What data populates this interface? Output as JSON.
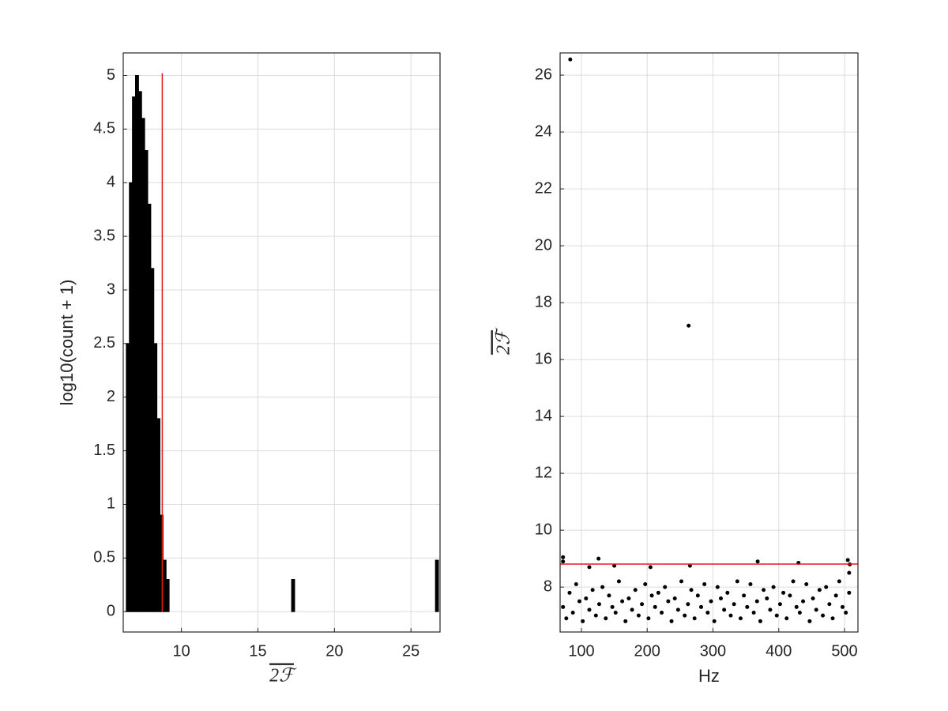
{
  "chart_data": [
    {
      "type": "histogram",
      "xlabel": "2ℱ",
      "ylabel": "log10(count + 1)",
      "bins": [
        6.4,
        6.6,
        6.8,
        7,
        7.2,
        7.4,
        7.6,
        7.8,
        8,
        8.2,
        8.4,
        8.6,
        8.8,
        9,
        9.2,
        9.4,
        9.6,
        9.8,
        10,
        10.2,
        10.4,
        10.6,
        10.8,
        11,
        11.2,
        11.4,
        11.6,
        11.8,
        12,
        12.2,
        12.4,
        12.6,
        12.8,
        13,
        13.2,
        13.4,
        13.6,
        13.8,
        14,
        14.2,
        14.4,
        14.6,
        14.8,
        15,
        15.2,
        15.4,
        15.6,
        15.8,
        16,
        16.2,
        16.4,
        16.6,
        16.8,
        17,
        17.2,
        17.4,
        17.6,
        17.8,
        18,
        18.2,
        18.4,
        18.6,
        18.8,
        19,
        19.2,
        19.4,
        19.6,
        19.8,
        20,
        20.2,
        20.4,
        20.6,
        20.8,
        21,
        21.2,
        21.4,
        21.6,
        21.8,
        22,
        22.2,
        22.4,
        22.6,
        22.8,
        23,
        23.2,
        23.4,
        23.6,
        23.8,
        24,
        24.2,
        24.4,
        24.6,
        24.8,
        25,
        25.2,
        25.4,
        25.6,
        25.8,
        26,
        26.2,
        26.4,
        26.6,
        26.8
      ],
      "values": [
        2.5,
        4.0,
        4.8,
        5.0,
        4.85,
        4.6,
        4.3,
        3.8,
        3.2,
        2.5,
        1.8,
        0.9,
        0.48,
        0.3,
        0,
        0,
        0,
        0,
        0,
        0,
        0,
        0,
        0,
        0,
        0,
        0,
        0,
        0,
        0,
        0,
        0,
        0,
        0,
        0,
        0,
        0,
        0,
        0,
        0,
        0,
        0,
        0,
        0,
        0,
        0,
        0,
        0,
        0,
        0,
        0,
        0,
        0,
        0,
        0,
        0.3,
        0,
        0,
        0,
        0,
        0,
        0,
        0,
        0,
        0,
        0,
        0,
        0,
        0,
        0,
        0,
        0,
        0,
        0,
        0,
        0,
        0,
        0,
        0,
        0,
        0,
        0,
        0,
        0,
        0,
        0,
        0,
        0,
        0,
        0,
        0,
        0,
        0,
        0,
        0,
        0,
        0,
        0,
        0,
        0,
        0,
        0,
        0.48
      ],
      "color": "#000000",
      "vline": {
        "x": 8.75,
        "ymax": 5.02,
        "color": "#e41a1c"
      },
      "xlim": [
        6.2,
        26.9
      ],
      "xticks": [
        10,
        15,
        20,
        25
      ],
      "ylim": [
        -0.19,
        5.21
      ],
      "yticks": [
        0,
        0.5,
        1,
        1.5,
        2,
        2.5,
        3,
        3.5,
        4,
        4.5,
        5
      ],
      "grid": true
    },
    {
      "type": "scatter",
      "xlabel": "Hz",
      "ylabel": "2ℱ",
      "x": [
        72,
        77,
        82,
        87,
        92,
        97,
        102,
        107,
        112,
        117,
        122,
        127,
        132,
        137,
        142,
        147,
        152,
        157,
        162,
        167,
        172,
        177,
        182,
        187,
        192,
        197,
        202,
        207,
        212,
        217,
        222,
        227,
        232,
        237,
        242,
        247,
        252,
        257,
        262,
        267,
        272,
        277,
        282,
        287,
        292,
        297,
        302,
        307,
        312,
        317,
        322,
        327,
        332,
        337,
        342,
        347,
        352,
        357,
        362,
        367,
        372,
        377,
        382,
        387,
        392,
        397,
        402,
        407,
        412,
        417,
        422,
        427,
        432,
        437,
        442,
        447,
        452,
        457,
        462,
        467,
        472,
        477,
        482,
        487,
        492,
        497,
        502,
        507,
        83,
        263,
        72,
        72,
        126,
        112,
        150,
        205,
        265,
        368,
        430,
        505,
        508,
        507
      ],
      "values": [
        7.3,
        6.9,
        7.8,
        7.1,
        8.1,
        7.5,
        6.8,
        7.6,
        7.2,
        7.9,
        7.0,
        7.4,
        8.0,
        6.9,
        7.7,
        7.3,
        7.1,
        8.2,
        7.5,
        6.8,
        7.6,
        7.2,
        7.9,
        7.0,
        7.4,
        8.1,
        6.9,
        7.7,
        7.3,
        7.8,
        7.1,
        8.0,
        7.5,
        6.8,
        7.6,
        7.2,
        8.2,
        7.0,
        7.4,
        7.9,
        6.9,
        7.7,
        7.3,
        8.1,
        7.1,
        7.5,
        6.8,
        8.0,
        7.6,
        7.2,
        7.8,
        7.0,
        7.4,
        8.2,
        6.9,
        7.7,
        7.3,
        8.1,
        7.1,
        7.5,
        6.8,
        7.9,
        7.6,
        7.2,
        8.0,
        7.0,
        7.4,
        7.8,
        6.9,
        7.7,
        8.2,
        7.3,
        7.1,
        7.5,
        8.1,
        6.8,
        7.6,
        7.2,
        7.9,
        7.0,
        8.0,
        7.4,
        6.9,
        7.7,
        8.2,
        7.3,
        7.1,
        7.8,
        26.55,
        17.19,
        9.05,
        8.9,
        9.0,
        8.7,
        8.75,
        8.7,
        8.75,
        8.9,
        8.85,
        8.95,
        8.8,
        8.5
      ],
      "color": "#000000",
      "hline": {
        "y": 8.81,
        "color": "#e41a1c"
      },
      "xlim": [
        67.6,
        520.4
      ],
      "xticks": [
        100,
        200,
        300,
        400,
        500
      ],
      "ylim": [
        6.42,
        26.78
      ],
      "yticks": [
        8,
        10,
        12,
        14,
        16,
        18,
        20,
        22,
        24,
        26
      ],
      "grid": true
    }
  ]
}
